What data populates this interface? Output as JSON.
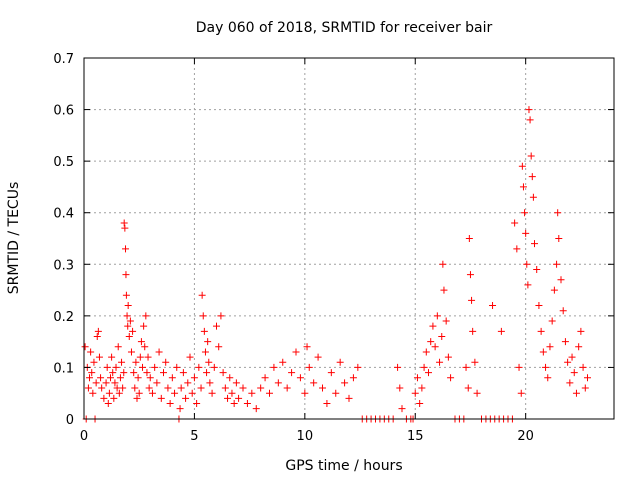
{
  "chart_data": {
    "type": "scatter",
    "title": "Day 060 of 2018, SRMTID for receiver bair",
    "xlabel": "GPS time / hours",
    "ylabel": "SRMTID / TECUs",
    "xlim": [
      0,
      24
    ],
    "ylim": [
      0,
      0.7
    ],
    "xticks": [
      0,
      5,
      10,
      15,
      20
    ],
    "yticks": [
      0,
      0.1,
      0.2,
      0.3,
      0.4,
      0.5,
      0.6,
      0.7
    ],
    "ytick_labels": [
      "0",
      "0.1",
      "0.2",
      "0.3",
      "0.4",
      "0.5",
      "0.6",
      "0.7"
    ],
    "grid": true,
    "marker": "+",
    "color": "#ff0000",
    "series": [
      {
        "name": "SRMTID",
        "points": [
          [
            0.05,
            0.14
          ],
          [
            0.1,
            0.0
          ],
          [
            0.15,
            0.1
          ],
          [
            0.2,
            0.06
          ],
          [
            0.25,
            0.08
          ],
          [
            0.3,
            0.13
          ],
          [
            0.35,
            0.09
          ],
          [
            0.4,
            0.05
          ],
          [
            0.45,
            0.11
          ],
          [
            0.5,
            0.0
          ],
          [
            0.55,
            0.07
          ],
          [
            0.6,
            0.16
          ],
          [
            0.65,
            0.17
          ],
          [
            0.7,
            0.12
          ],
          [
            0.75,
            0.08
          ],
          [
            0.8,
            0.06
          ],
          [
            0.9,
            0.04
          ],
          [
            1.0,
            0.07
          ],
          [
            1.05,
            0.1
          ],
          [
            1.1,
            0.03
          ],
          [
            1.15,
            0.05
          ],
          [
            1.2,
            0.08
          ],
          [
            1.25,
            0.12
          ],
          [
            1.3,
            0.09
          ],
          [
            1.35,
            0.04
          ],
          [
            1.4,
            0.07
          ],
          [
            1.45,
            0.1
          ],
          [
            1.5,
            0.06
          ],
          [
            1.55,
            0.14
          ],
          [
            1.6,
            0.05
          ],
          [
            1.65,
            0.08
          ],
          [
            1.7,
            0.11
          ],
          [
            1.75,
            0.06
          ],
          [
            1.8,
            0.09
          ],
          [
            1.82,
            0.38
          ],
          [
            1.85,
            0.37
          ],
          [
            1.88,
            0.33
          ],
          [
            1.9,
            0.28
          ],
          [
            1.92,
            0.24
          ],
          [
            1.95,
            0.2
          ],
          [
            1.98,
            0.18
          ],
          [
            2.0,
            0.22
          ],
          [
            2.05,
            0.16
          ],
          [
            2.1,
            0.19
          ],
          [
            2.15,
            0.13
          ],
          [
            2.2,
            0.17
          ],
          [
            2.25,
            0.09
          ],
          [
            2.3,
            0.06
          ],
          [
            2.35,
            0.11
          ],
          [
            2.4,
            0.04
          ],
          [
            2.45,
            0.08
          ],
          [
            2.5,
            0.05
          ],
          [
            2.55,
            0.12
          ],
          [
            2.6,
            0.15
          ],
          [
            2.65,
            0.1
          ],
          [
            2.7,
            0.18
          ],
          [
            2.75,
            0.14
          ],
          [
            2.8,
            0.2
          ],
          [
            2.85,
            0.09
          ],
          [
            2.9,
            0.12
          ],
          [
            2.95,
            0.06
          ],
          [
            3.0,
            0.08
          ],
          [
            3.1,
            0.05
          ],
          [
            3.2,
            0.1
          ],
          [
            3.3,
            0.07
          ],
          [
            3.4,
            0.13
          ],
          [
            3.5,
            0.04
          ],
          [
            3.6,
            0.09
          ],
          [
            3.7,
            0.11
          ],
          [
            3.8,
            0.06
          ],
          [
            3.9,
            0.03
          ],
          [
            4.0,
            0.08
          ],
          [
            4.1,
            0.05
          ],
          [
            4.2,
            0.1
          ],
          [
            4.3,
            0.0
          ],
          [
            4.35,
            0.02
          ],
          [
            4.4,
            0.06
          ],
          [
            4.5,
            0.09
          ],
          [
            4.6,
            0.04
          ],
          [
            4.7,
            0.07
          ],
          [
            4.8,
            0.12
          ],
          [
            4.9,
            0.05
          ],
          [
            5.0,
            0.08
          ],
          [
            5.1,
            0.03
          ],
          [
            5.2,
            0.1
          ],
          [
            5.3,
            0.06
          ],
          [
            5.35,
            0.24
          ],
          [
            5.4,
            0.2
          ],
          [
            5.45,
            0.17
          ],
          [
            5.5,
            0.13
          ],
          [
            5.55,
            0.09
          ],
          [
            5.6,
            0.15
          ],
          [
            5.65,
            0.11
          ],
          [
            5.7,
            0.07
          ],
          [
            5.8,
            0.05
          ],
          [
            5.9,
            0.1
          ],
          [
            6.0,
            0.18
          ],
          [
            6.1,
            0.14
          ],
          [
            6.2,
            0.2
          ],
          [
            6.3,
            0.09
          ],
          [
            6.4,
            0.06
          ],
          [
            6.5,
            0.04
          ],
          [
            6.6,
            0.08
          ],
          [
            6.7,
            0.05
          ],
          [
            6.8,
            0.03
          ],
          [
            6.9,
            0.07
          ],
          [
            7.0,
            0.04
          ],
          [
            7.2,
            0.06
          ],
          [
            7.4,
            0.03
          ],
          [
            7.6,
            0.05
          ],
          [
            7.8,
            0.02
          ],
          [
            8.0,
            0.06
          ],
          [
            8.2,
            0.08
          ],
          [
            8.4,
            0.05
          ],
          [
            8.6,
            0.1
          ],
          [
            8.8,
            0.07
          ],
          [
            9.0,
            0.11
          ],
          [
            9.2,
            0.06
          ],
          [
            9.4,
            0.09
          ],
          [
            9.6,
            0.13
          ],
          [
            9.8,
            0.08
          ],
          [
            10.0,
            0.05
          ],
          [
            10.1,
            0.14
          ],
          [
            10.2,
            0.1
          ],
          [
            10.4,
            0.07
          ],
          [
            10.6,
            0.12
          ],
          [
            10.8,
            0.06
          ],
          [
            11.0,
            0.03
          ],
          [
            11.2,
            0.09
          ],
          [
            11.4,
            0.05
          ],
          [
            11.6,
            0.11
          ],
          [
            11.8,
            0.07
          ],
          [
            12.0,
            0.04
          ],
          [
            12.2,
            0.08
          ],
          [
            12.4,
            0.1
          ],
          [
            12.6,
            0.0
          ],
          [
            12.8,
            0.0
          ],
          [
            13.0,
            0.0
          ],
          [
            13.2,
            0.0
          ],
          [
            13.4,
            0.0
          ],
          [
            13.6,
            0.0
          ],
          [
            13.8,
            0.0
          ],
          [
            14.0,
            0.0
          ],
          [
            14.2,
            0.1
          ],
          [
            14.3,
            0.06
          ],
          [
            14.4,
            0.02
          ],
          [
            14.6,
            0.0
          ],
          [
            14.8,
            0.0
          ],
          [
            14.9,
            0.0
          ],
          [
            15.0,
            0.05
          ],
          [
            15.1,
            0.08
          ],
          [
            15.2,
            0.03
          ],
          [
            15.3,
            0.06
          ],
          [
            15.4,
            0.1
          ],
          [
            15.5,
            0.13
          ],
          [
            15.6,
            0.09
          ],
          [
            15.7,
            0.15
          ],
          [
            15.8,
            0.18
          ],
          [
            15.9,
            0.14
          ],
          [
            16.0,
            0.2
          ],
          [
            16.1,
            0.11
          ],
          [
            16.2,
            0.16
          ],
          [
            16.25,
            0.3
          ],
          [
            16.3,
            0.25
          ],
          [
            16.4,
            0.19
          ],
          [
            16.5,
            0.12
          ],
          [
            16.6,
            0.08
          ],
          [
            16.8,
            0.0
          ],
          [
            17.0,
            0.0
          ],
          [
            17.2,
            0.0
          ],
          [
            17.3,
            0.1
          ],
          [
            17.4,
            0.06
          ],
          [
            17.45,
            0.35
          ],
          [
            17.5,
            0.28
          ],
          [
            17.55,
            0.23
          ],
          [
            17.6,
            0.17
          ],
          [
            17.7,
            0.11
          ],
          [
            17.8,
            0.05
          ],
          [
            18.0,
            0.0
          ],
          [
            18.2,
            0.0
          ],
          [
            18.4,
            0.0
          ],
          [
            18.5,
            0.22
          ],
          [
            18.6,
            0.0
          ],
          [
            18.8,
            0.0
          ],
          [
            18.9,
            0.17
          ],
          [
            19.0,
            0.0
          ],
          [
            19.2,
            0.0
          ],
          [
            19.4,
            0.0
          ],
          [
            19.5,
            0.38
          ],
          [
            19.6,
            0.33
          ],
          [
            19.7,
            0.1
          ],
          [
            19.8,
            0.05
          ],
          [
            19.85,
            0.49
          ],
          [
            19.9,
            0.45
          ],
          [
            19.95,
            0.4
          ],
          [
            20.0,
            0.36
          ],
          [
            20.05,
            0.3
          ],
          [
            20.1,
            0.26
          ],
          [
            20.15,
            0.6
          ],
          [
            20.2,
            0.58
          ],
          [
            20.25,
            0.51
          ],
          [
            20.3,
            0.47
          ],
          [
            20.35,
            0.43
          ],
          [
            20.4,
            0.34
          ],
          [
            20.5,
            0.29
          ],
          [
            20.6,
            0.22
          ],
          [
            20.7,
            0.17
          ],
          [
            20.8,
            0.13
          ],
          [
            20.9,
            0.1
          ],
          [
            21.0,
            0.08
          ],
          [
            21.1,
            0.14
          ],
          [
            21.2,
            0.19
          ],
          [
            21.3,
            0.25
          ],
          [
            21.4,
            0.3
          ],
          [
            21.45,
            0.4
          ],
          [
            21.5,
            0.35
          ],
          [
            21.6,
            0.27
          ],
          [
            21.7,
            0.21
          ],
          [
            21.8,
            0.15
          ],
          [
            21.9,
            0.11
          ],
          [
            22.0,
            0.07
          ],
          [
            22.1,
            0.12
          ],
          [
            22.2,
            0.09
          ],
          [
            22.3,
            0.05
          ],
          [
            22.4,
            0.14
          ],
          [
            22.5,
            0.17
          ],
          [
            22.6,
            0.1
          ],
          [
            22.7,
            0.06
          ],
          [
            22.8,
            0.08
          ]
        ]
      }
    ]
  }
}
